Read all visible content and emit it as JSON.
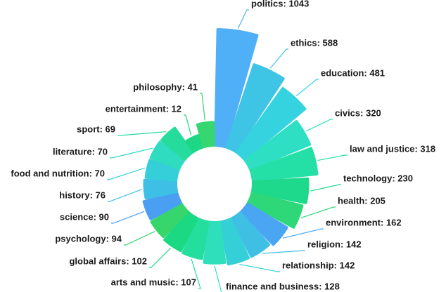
{
  "chart_data": {
    "type": "radial-bar",
    "values": [
      1043,
      588,
      481,
      320,
      318,
      230,
      205,
      162,
      142,
      142,
      128,
      107,
      102,
      94,
      90,
      76,
      70,
      70,
      69,
      12,
      41
    ],
    "value_labels": [
      "politics: 1043",
      "ethics: 588",
      "education: 481",
      "civics: 320",
      "law and justice: 318",
      "technology: 230",
      "health: 205",
      "environment: 162",
      "religion: 142",
      "relationship: 142",
      "finance and business: 128",
      "arts and music: 107",
      "global affairs: 102",
      "psychology: 94",
      "science: 90",
      "history: 76",
      "food and nutrition: 70",
      "literature: 70",
      "sport: 69",
      "entertainment: 12",
      "philosophy: 41"
    ],
    "colors": [
      "#50b0f7",
      "#3ec4e4",
      "#35d3e0",
      "#2fdfc4",
      "#25e0a6",
      "#1ed98c",
      "#2ed878",
      "#4aa6f2",
      "#3fbfe4",
      "#35cfd8",
      "#2fdfbc",
      "#24de9e",
      "#1ad982",
      "#36d66c",
      "#4a9ff2",
      "#3ebfe6",
      "#35cfda",
      "#2fdcc0",
      "#25dc9c",
      "#1cd884",
      "#36d670"
    ]
  }
}
